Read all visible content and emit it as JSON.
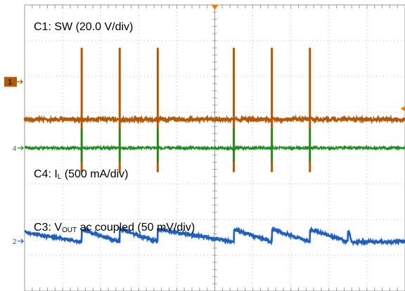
{
  "chart_data": {
    "type": "line",
    "title": "",
    "xlabel": "",
    "ylabel": "",
    "grid": true,
    "divisions": {
      "x": 10,
      "y": 8
    },
    "trigger_marker_color": "#f07c00",
    "channels": [
      {
        "name": "C1",
        "label_prefix": "C1: SW (20.0 V/div)",
        "marker": "1",
        "color": "#b35806",
        "baseline_div": 4.8,
        "high_div": 6.55,
        "spike_div": [
          -0.3,
          2.0
        ],
        "spike_times_div": [
          1.5,
          2.5,
          3.5,
          5.5,
          6.5,
          7.5
        ]
      },
      {
        "name": "C4",
        "label_main": "C4: I",
        "label_sub": "L",
        "label_suffix": " (500 mA/div)",
        "marker": "4",
        "color": "#1c8c1c",
        "baseline_div": 4.0,
        "spike_div": [
          0.6,
          1.4
        ],
        "spike_times_div": [
          1.5,
          2.5,
          3.5,
          5.5,
          6.5,
          7.5
        ]
      },
      {
        "name": "C3",
        "label_main": "C3: V",
        "label_sub": "OUT",
        "label_suffix": " ac coupled (50 mV/div)",
        "marker": "2",
        "color": "#1f5fc0",
        "baseline_div": 1.55,
        "ripple_div": 0.35,
        "reset_times_div": [
          1.5,
          2.5,
          3.5,
          5.5,
          6.5,
          7.5
        ]
      }
    ]
  }
}
